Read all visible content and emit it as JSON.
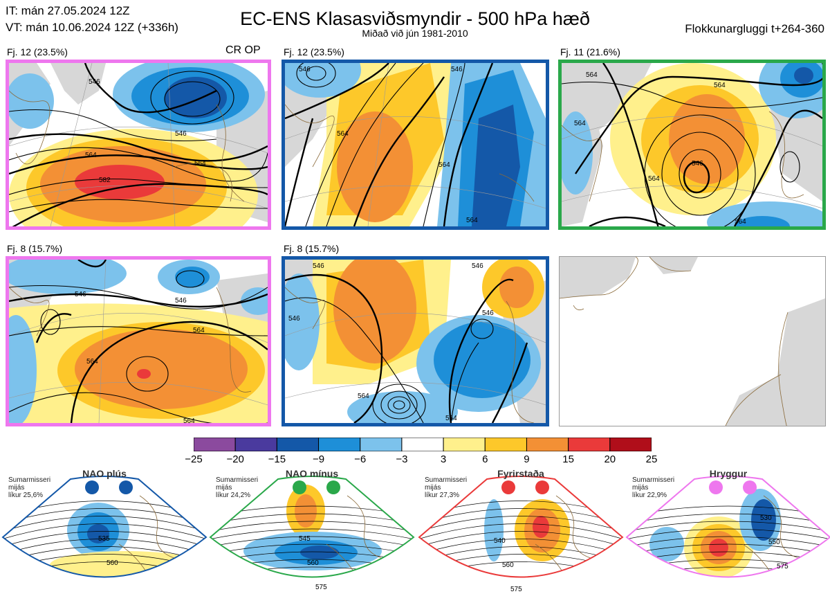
{
  "header": {
    "it": "IT: mán 27.05.2024 12Z",
    "vt": "VT: mán 10.06.2024 12Z  (+336h)",
    "title": "EC-ENS Klasasviðsmyndir - 500 hPa hæð",
    "subtitle": "Miðað við jún 1981-2010",
    "window": "Flokkunargluggi t+264-360"
  },
  "panels": [
    {
      "label": "Fj. 12 (23.5%)",
      "tag": "CR OP",
      "border": "#ee77ee"
    },
    {
      "label": "Fj. 12 (23.5%)",
      "tag": "",
      "border": "#1458a8"
    },
    {
      "label": "Fj. 11 (21.6%)",
      "tag": "",
      "border": "#2aa84a"
    },
    {
      "label": "Fj. 8 (15.7%)",
      "tag": "",
      "border": "#ee77ee"
    },
    {
      "label": "Fj. 8 (15.7%)",
      "tag": "",
      "border": "#1458a8"
    }
  ],
  "contour_labels": {
    "p1": [
      "546",
      "546",
      "564",
      "564",
      "582"
    ],
    "p2": [
      "546",
      "546",
      "564",
      "564",
      "564"
    ],
    "p3": [
      "564",
      "564",
      "564",
      "546",
      "564",
      "564"
    ],
    "p4": [
      "546",
      "546",
      "564",
      "564",
      "564"
    ],
    "p5": [
      "546",
      "546",
      "546",
      "546",
      "564",
      "564"
    ]
  },
  "colorbar": {
    "labels": [
      "−25",
      "−20",
      "−15",
      "−9",
      "−6",
      "−3",
      "3",
      "6",
      "9",
      "15",
      "20",
      "25"
    ],
    "colors": [
      "#8b4a9e",
      "#4a3a9e",
      "#1458a8",
      "#1e8fd8",
      "#7cc2ec",
      "#ffffff",
      "#fff08c",
      "#fdc82a",
      "#f39035",
      "#ea3a3a",
      "#b00e1a"
    ]
  },
  "regimes": [
    {
      "name": "NAO plús",
      "season": "Sumarmisseri",
      "mean": "mijás",
      "prob": "líkur 25,6%",
      "color": "#1458a8",
      "contours": [
        "535",
        "560"
      ]
    },
    {
      "name": "NAO mínus",
      "season": "Sumarmisseri",
      "mean": "mijás",
      "prob": "líkur 24,2%",
      "color": "#2aa84a",
      "contours": [
        "545",
        "560",
        "575"
      ]
    },
    {
      "name": "Fyrirstaða",
      "season": "Sumarmisseri",
      "mean": "mijás",
      "prob": "líkur 27,3%",
      "color": "#ea3a3a",
      "contours": [
        "540",
        "560",
        "575"
      ]
    },
    {
      "name": "Hryggur",
      "season": "Sumarmisseri",
      "mean": "mijás",
      "prob": "líkur 22,9%",
      "color": "#ee77ee",
      "contours": [
        "530",
        "550",
        "575"
      ]
    }
  ],
  "map_colors": {
    "land": "#d7d7d7",
    "coast": "#8a6a3a",
    "grid": "#999999"
  }
}
